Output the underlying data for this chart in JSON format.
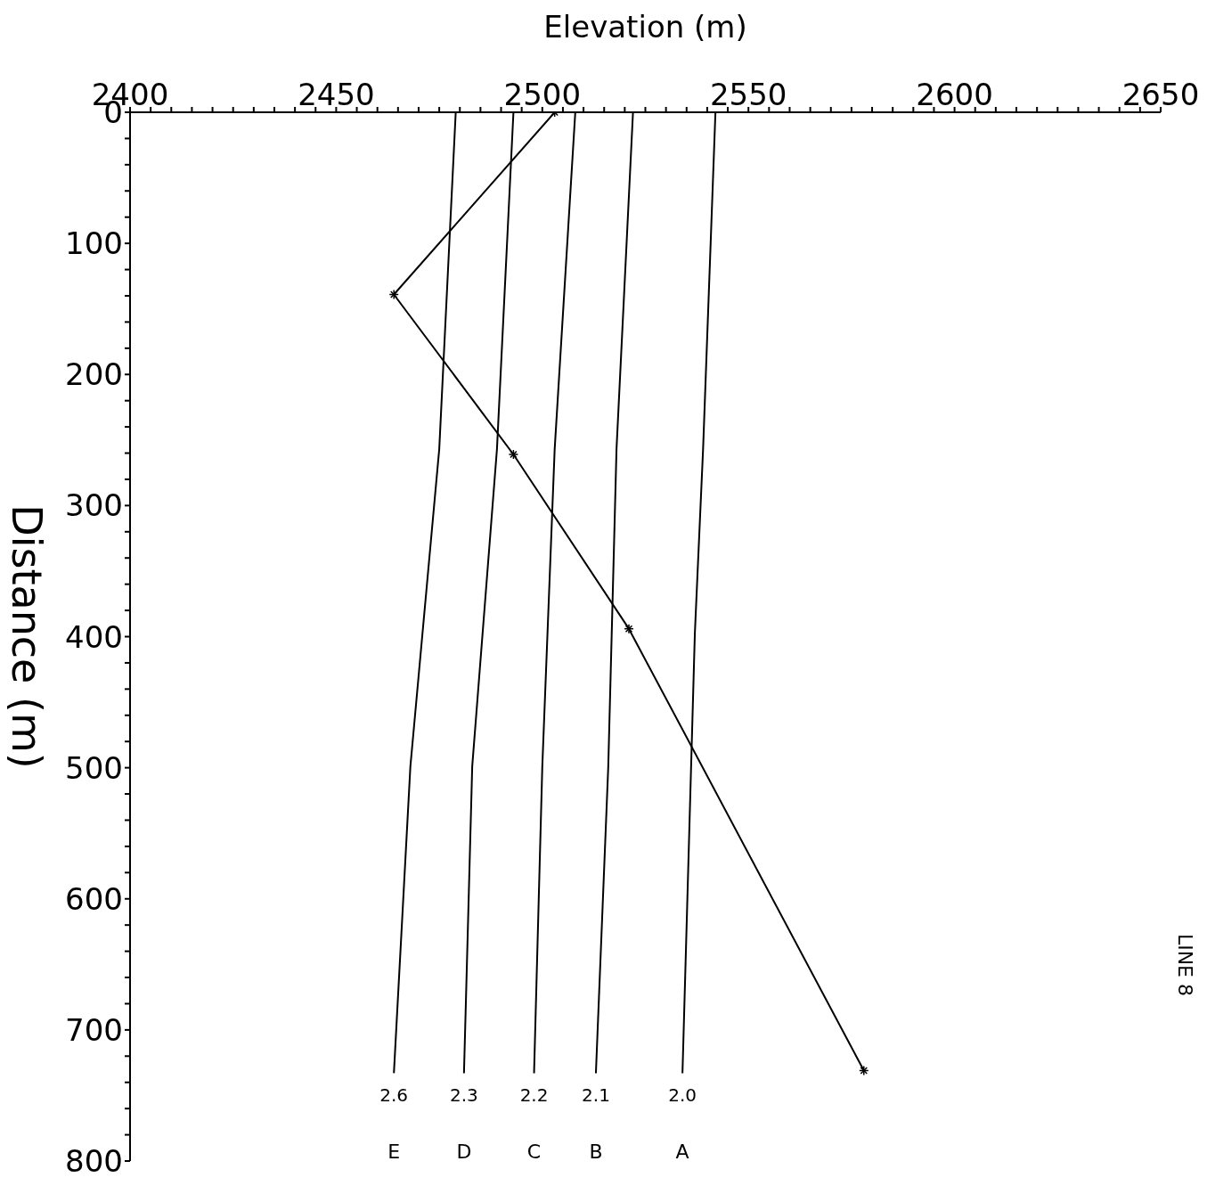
{
  "chart_data": {
    "type": "line",
    "xlabel": "Elevation (m)",
    "ylabel": "Distance (m)",
    "xlim": [
      2400,
      2650
    ],
    "ylim": [
      800,
      0
    ],
    "xticks": [
      2400,
      {
        "value": 2405,
        "label": null
      },
      {
        "value": 2410,
        "label": null
      },
      {
        "value": 2415,
        "label": null
      },
      {
        "value": 2420,
        "label": null
      },
      {
        "value": 2425,
        "label": null
      },
      {
        "value": 2430,
        "label": null
      },
      {
        "value": 2435,
        "label": null
      },
      {
        "value": 2440,
        "label": null
      },
      {
        "value": 2445,
        "label": null
      },
      2450,
      {
        "value": 2455,
        "label": null
      },
      {
        "value": 2460,
        "label": null
      },
      {
        "value": 2465,
        "label": null
      },
      {
        "value": 2470,
        "label": null
      },
      {
        "value": 2475,
        "label": null
      },
      {
        "value": 2480,
        "label": null
      },
      {
        "value": 2485,
        "label": null
      },
      {
        "value": 2490,
        "label": null
      },
      {
        "value": 2495,
        "label": null
      },
      2500,
      {
        "value": 2505,
        "label": null
      },
      {
        "value": 2510,
        "label": null
      },
      {
        "value": 2515,
        "label": null
      },
      {
        "value": 2520,
        "label": null
      },
      {
        "value": 2525,
        "label": null
      },
      {
        "value": 2530,
        "label": null
      },
      {
        "value": 2535,
        "label": null
      },
      {
        "value": 2540,
        "label": null
      },
      {
        "value": 2545,
        "label": null
      },
      2550,
      {
        "value": 2555,
        "label": null
      },
      {
        "value": 2560,
        "label": null
      },
      {
        "value": 2565,
        "label": null
      },
      {
        "value": 2570,
        "label": null
      },
      {
        "value": 2575,
        "label": null
      },
      {
        "value": 2580,
        "label": null
      },
      {
        "value": 2585,
        "label": null
      },
      {
        "value": 2590,
        "label": null
      },
      {
        "value": 2595,
        "label": null
      },
      2600,
      {
        "value": 2605,
        "label": null
      },
      {
        "value": 2610,
        "label": null
      },
      {
        "value": 2615,
        "label": null
      },
      {
        "value": 2620,
        "label": null
      },
      {
        "value": 2625,
        "label": null
      },
      {
        "value": 2630,
        "label": null
      },
      {
        "value": 2635,
        "label": null
      },
      {
        "value": 2640,
        "label": null
      },
      {
        "value": 2645,
        "label": null
      },
      2650
    ],
    "yticks": [
      0,
      {
        "value": 20,
        "label": null
      },
      {
        "value": 40,
        "label": null
      },
      {
        "value": 60,
        "label": null
      },
      {
        "value": 80,
        "label": null
      },
      100,
      {
        "value": 120,
        "label": null
      },
      {
        "value": 140,
        "label": null
      },
      {
        "value": 160,
        "label": null
      },
      {
        "value": 180,
        "label": null
      },
      200,
      {
        "value": 220,
        "label": null
      },
      {
        "value": 240,
        "label": null
      },
      {
        "value": 260,
        "label": null
      },
      {
        "value": 280,
        "label": null
      },
      300,
      {
        "value": 320,
        "label": null
      },
      {
        "value": 340,
        "label": null
      },
      {
        "value": 360,
        "label": null
      },
      {
        "value": 380,
        "label": null
      },
      400,
      {
        "value": 420,
        "label": null
      },
      {
        "value": 440,
        "label": null
      },
      {
        "value": 460,
        "label": null
      },
      {
        "value": 480,
        "label": null
      },
      500,
      {
        "value": 520,
        "label": null
      },
      {
        "value": 540,
        "label": null
      },
      {
        "value": 560,
        "label": null
      },
      {
        "value": 580,
        "label": null
      },
      600,
      {
        "value": 620,
        "label": null
      },
      {
        "value": 640,
        "label": null
      },
      {
        "value": 660,
        "label": null
      },
      {
        "value": 680,
        "label": null
      },
      700,
      {
        "value": 720,
        "label": null
      },
      {
        "value": 740,
        "label": null
      },
      {
        "value": 760,
        "label": null
      },
      {
        "value": 780,
        "label": null
      },
      800
    ],
    "series": [
      {
        "color": "#000000",
        "marker": "cross",
        "x": [
          2503,
          2464,
          2493,
          2521,
          2578
        ],
        "values": [
          0,
          139,
          261,
          394,
          731
        ]
      },
      {
        "name": "A",
        "color": "#000000",
        "marker": "none",
        "x": [
          2542,
          2539,
          2537,
          2534
        ],
        "values": [
          0,
          257,
          398,
          733
        ]
      },
      {
        "name": "B",
        "color": "#000000",
        "marker": "none",
        "x": [
          2522,
          2518,
          2516,
          2513
        ],
        "values": [
          0,
          257,
          499,
          733
        ]
      },
      {
        "name": "C",
        "color": "#000000",
        "marker": "none",
        "x": [
          2508,
          2503,
          2500,
          2498
        ],
        "values": [
          0,
          257,
          499,
          733
        ]
      },
      {
        "name": "D",
        "color": "#000000",
        "marker": "none",
        "x": [
          2493,
          2489,
          2483,
          2481
        ],
        "values": [
          0,
          257,
          499,
          733
        ]
      },
      {
        "name": "E",
        "color": "#000000",
        "marker": "none",
        "x": [
          2479,
          2475,
          2468,
          2464
        ],
        "values": [
          0,
          257,
          499,
          733
        ]
      }
    ],
    "annotations": [
      {
        "text": "2.0",
        "x": 2534,
        "y": 733
      },
      {
        "text": "2.1",
        "x": 2513,
        "y": 733
      },
      {
        "text": "2.2",
        "x": 2498,
        "y": 733
      },
      {
        "text": "2.3",
        "x": 2481,
        "y": 733
      },
      {
        "text": "2.6",
        "x": 2464,
        "y": 733
      },
      "LINE 8"
    ]
  }
}
